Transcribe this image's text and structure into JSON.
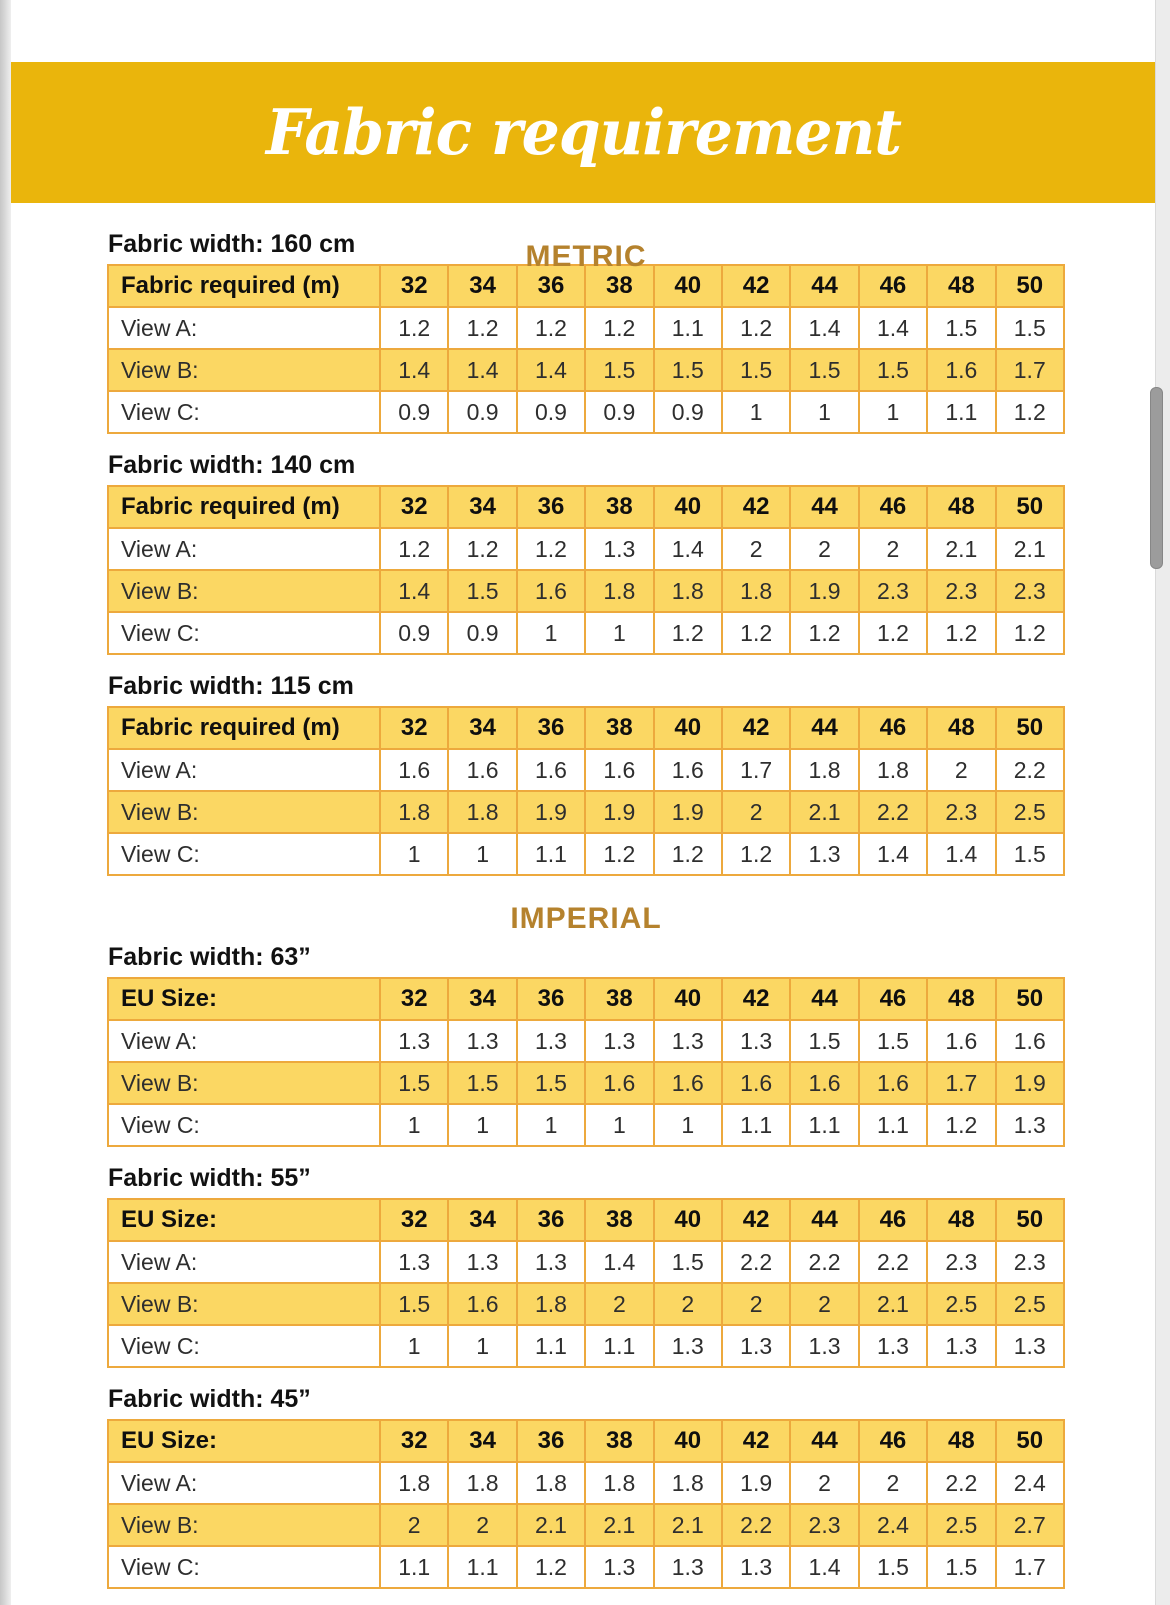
{
  "title": "Fabric requirement",
  "sizes": [
    "32",
    "34",
    "36",
    "38",
    "40",
    "42",
    "44",
    "46",
    "48",
    "50"
  ],
  "sections": [
    {
      "heading": "METRIC",
      "tables": [
        {
          "width_label": "Fabric width: 160 cm",
          "corner_label": "Fabric required (m)",
          "rows": [
            {
              "label": "View A:",
              "values": [
                "1.2",
                "1.2",
                "1.2",
                "1.2",
                "1.1",
                "1.2",
                "1.4",
                "1.4",
                "1.5",
                "1.5"
              ]
            },
            {
              "label": "View B:",
              "values": [
                "1.4",
                "1.4",
                "1.4",
                "1.5",
                "1.5",
                "1.5",
                "1.5",
                "1.5",
                "1.6",
                "1.7"
              ]
            },
            {
              "label": "View C:",
              "values": [
                "0.9",
                "0.9",
                "0.9",
                "0.9",
                "0.9",
                "1",
                "1",
                "1",
                "1.1",
                "1.2"
              ]
            }
          ]
        },
        {
          "width_label": "Fabric width: 140 cm",
          "corner_label": "Fabric required (m)",
          "rows": [
            {
              "label": "View A:",
              "values": [
                "1.2",
                "1.2",
                "1.2",
                "1.3",
                "1.4",
                "2",
                "2",
                "2",
                "2.1",
                "2.1"
              ]
            },
            {
              "label": "View B:",
              "values": [
                "1.4",
                "1.5",
                "1.6",
                "1.8",
                "1.8",
                "1.8",
                "1.9",
                "2.3",
                "2.3",
                "2.3"
              ]
            },
            {
              "label": "View C:",
              "values": [
                "0.9",
                "0.9",
                "1",
                "1",
                "1.2",
                "1.2",
                "1.2",
                "1.2",
                "1.2",
                "1.2"
              ]
            }
          ]
        },
        {
          "width_label": "Fabric width: 115 cm",
          "corner_label": "Fabric required (m)",
          "rows": [
            {
              "label": "View A:",
              "values": [
                "1.6",
                "1.6",
                "1.6",
                "1.6",
                "1.6",
                "1.7",
                "1.8",
                "1.8",
                "2",
                "2.2"
              ]
            },
            {
              "label": "View B:",
              "values": [
                "1.8",
                "1.8",
                "1.9",
                "1.9",
                "1.9",
                "2",
                "2.1",
                "2.2",
                "2.3",
                "2.5"
              ]
            },
            {
              "label": "View C:",
              "values": [
                "1",
                "1",
                "1.1",
                "1.2",
                "1.2",
                "1.2",
                "1.3",
                "1.4",
                "1.4",
                "1.5"
              ]
            }
          ]
        }
      ]
    },
    {
      "heading": "IMPERIAL",
      "tables": [
        {
          "width_label": "Fabric width: 63”",
          "corner_label": "EU Size:",
          "rows": [
            {
              "label": "View A:",
              "values": [
                "1.3",
                "1.3",
                "1.3",
                "1.3",
                "1.3",
                "1.3",
                "1.5",
                "1.5",
                "1.6",
                "1.6"
              ]
            },
            {
              "label": "View B:",
              "values": [
                "1.5",
                "1.5",
                "1.5",
                "1.6",
                "1.6",
                "1.6",
                "1.6",
                "1.6",
                "1.7",
                "1.9"
              ]
            },
            {
              "label": "View C:",
              "values": [
                "1",
                "1",
                "1",
                "1",
                "1",
                "1.1",
                "1.1",
                "1.1",
                "1.2",
                "1.3"
              ]
            }
          ]
        },
        {
          "width_label": "Fabric width: 55”",
          "corner_label": "EU Size:",
          "rows": [
            {
              "label": "View A:",
              "values": [
                "1.3",
                "1.3",
                "1.3",
                "1.4",
                "1.5",
                "2.2",
                "2.2",
                "2.2",
                "2.3",
                "2.3"
              ]
            },
            {
              "label": "View B:",
              "values": [
                "1.5",
                "1.6",
                "1.8",
                "2",
                "2",
                "2",
                "2",
                "2.1",
                "2.5",
                "2.5"
              ]
            },
            {
              "label": "View C:",
              "values": [
                "1",
                "1",
                "1.1",
                "1.1",
                "1.3",
                "1.3",
                "1.3",
                "1.3",
                "1.3",
                "1.3"
              ]
            }
          ]
        },
        {
          "width_label": "Fabric width: 45”",
          "corner_label": "EU Size:",
          "rows": [
            {
              "label": "View A:",
              "values": [
                "1.8",
                "1.8",
                "1.8",
                "1.8",
                "1.8",
                "1.9",
                "2",
                "2",
                "2.2",
                "2.4"
              ]
            },
            {
              "label": "View B:",
              "values": [
                "2",
                "2",
                "2.1",
                "2.1",
                "2.1",
                "2.2",
                "2.3",
                "2.4",
                "2.5",
                "2.7"
              ]
            },
            {
              "label": "View C:",
              "values": [
                "1.1",
                "1.1",
                "1.2",
                "1.3",
                "1.3",
                "1.3",
                "1.4",
                "1.5",
                "1.5",
                "1.7"
              ]
            }
          ]
        }
      ]
    }
  ],
  "colors": {
    "banner_gold": "#EAB50C",
    "heading_gold": "#B5822D",
    "cell_yellow": "#FBD763",
    "table_border": "#EDA93D"
  }
}
